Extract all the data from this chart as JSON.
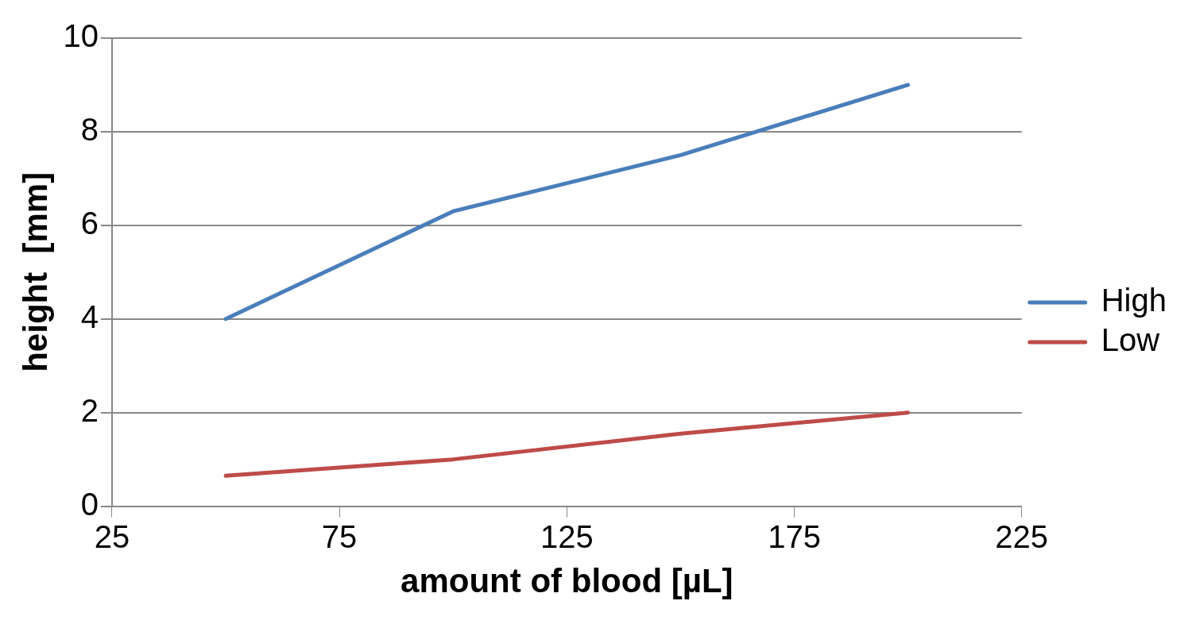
{
  "chart_data": {
    "type": "line",
    "xlabel": "amount of blood [µL]",
    "ylabel": "height  [mm]",
    "x": [
      50,
      100,
      150,
      200
    ],
    "series": [
      {
        "name": "High",
        "color": "#4a7ebb",
        "values": [
          4.0,
          6.3,
          7.5,
          9.0
        ]
      },
      {
        "name": "Low",
        "color": "#be4b48",
        "values": [
          0.65,
          1.0,
          1.55,
          2.0
        ]
      }
    ],
    "xlim": [
      25,
      225
    ],
    "xticks": [
      25,
      75,
      125,
      175,
      225
    ],
    "ylim": [
      0,
      10
    ],
    "yticks": [
      0,
      2,
      4,
      6,
      8,
      10
    ],
    "grid": "y",
    "legend": "right",
    "marker": "none",
    "line_style": "solid"
  }
}
